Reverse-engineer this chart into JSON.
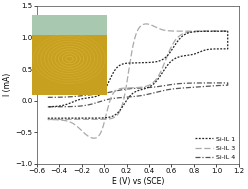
{
  "title": "",
  "xlabel": "E (V) vs (SCE)",
  "ylabel": "I (mA)",
  "xlim": [
    -0.6,
    1.2
  ],
  "ylim": [
    -1.0,
    1.5
  ],
  "xticks": [
    -0.6,
    -0.4,
    -0.2,
    0.0,
    0.2,
    0.4,
    0.6,
    0.8,
    1.0,
    1.2
  ],
  "yticks": [
    -1.0,
    -0.5,
    0.0,
    0.5,
    1.0,
    1.5
  ],
  "legend_labels": [
    "Si-IL 1",
    "Si-IL 3",
    "Si-IL 4"
  ],
  "background_color": "#ffffff",
  "line_color_1": "#222222",
  "line_color_3": "#aaaaaa",
  "line_color_4": "#555555",
  "inset_bg": "#c8a830",
  "inset_ring": "#e8d060"
}
